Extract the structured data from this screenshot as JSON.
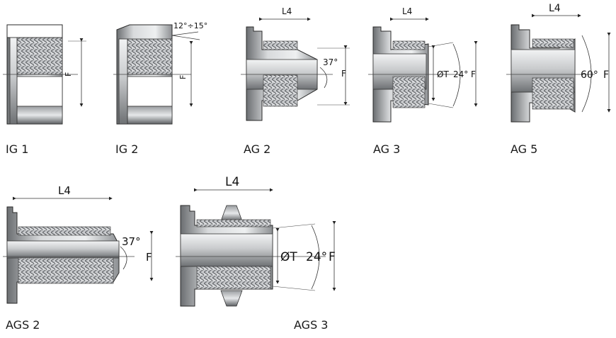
{
  "labels": {
    "ig1": "IG 1",
    "ig2": "IG 2",
    "ag2": "AG 2",
    "ag3": "AG 3",
    "ag5": "AG 5",
    "ags2": "AGS 2",
    "ags3": "AGS 3"
  },
  "dims": {
    "L4": "L4",
    "F": "F",
    "T": "ØT",
    "angle12_15": "12°÷15°",
    "angle24": "24°",
    "angle37": "37°",
    "angle60": "60°"
  },
  "colors": {
    "metal_light": "#e4e6e8",
    "metal_mid": "#a9acaf",
    "metal_dark": "#55585b",
    "line": "#2a2a2a"
  }
}
